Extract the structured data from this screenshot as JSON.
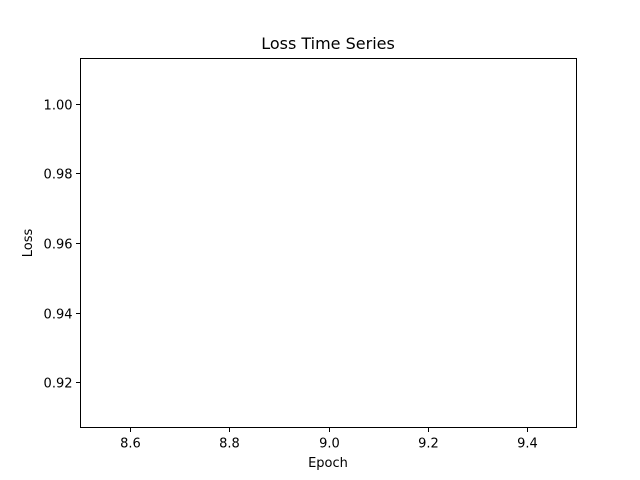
{
  "chart_data": {
    "type": "line",
    "title": "Loss Time Series",
    "xlabel": "Epoch",
    "ylabel": "Loss",
    "xlim": [
      8.5,
      9.5
    ],
    "ylim": [
      0.907,
      1.013
    ],
    "xticks": [
      8.6,
      8.8,
      9.0,
      9.2,
      9.4
    ],
    "xtick_labels": [
      "8.6",
      "8.8",
      "9.0",
      "9.2",
      "9.4"
    ],
    "yticks": [
      0.92,
      0.94,
      0.96,
      0.98,
      1.0
    ],
    "ytick_labels": [
      "0.92",
      "0.94",
      "0.96",
      "0.98",
      "1.00"
    ],
    "grid": false,
    "series": [
      {
        "x": [],
        "y": []
      }
    ]
  }
}
